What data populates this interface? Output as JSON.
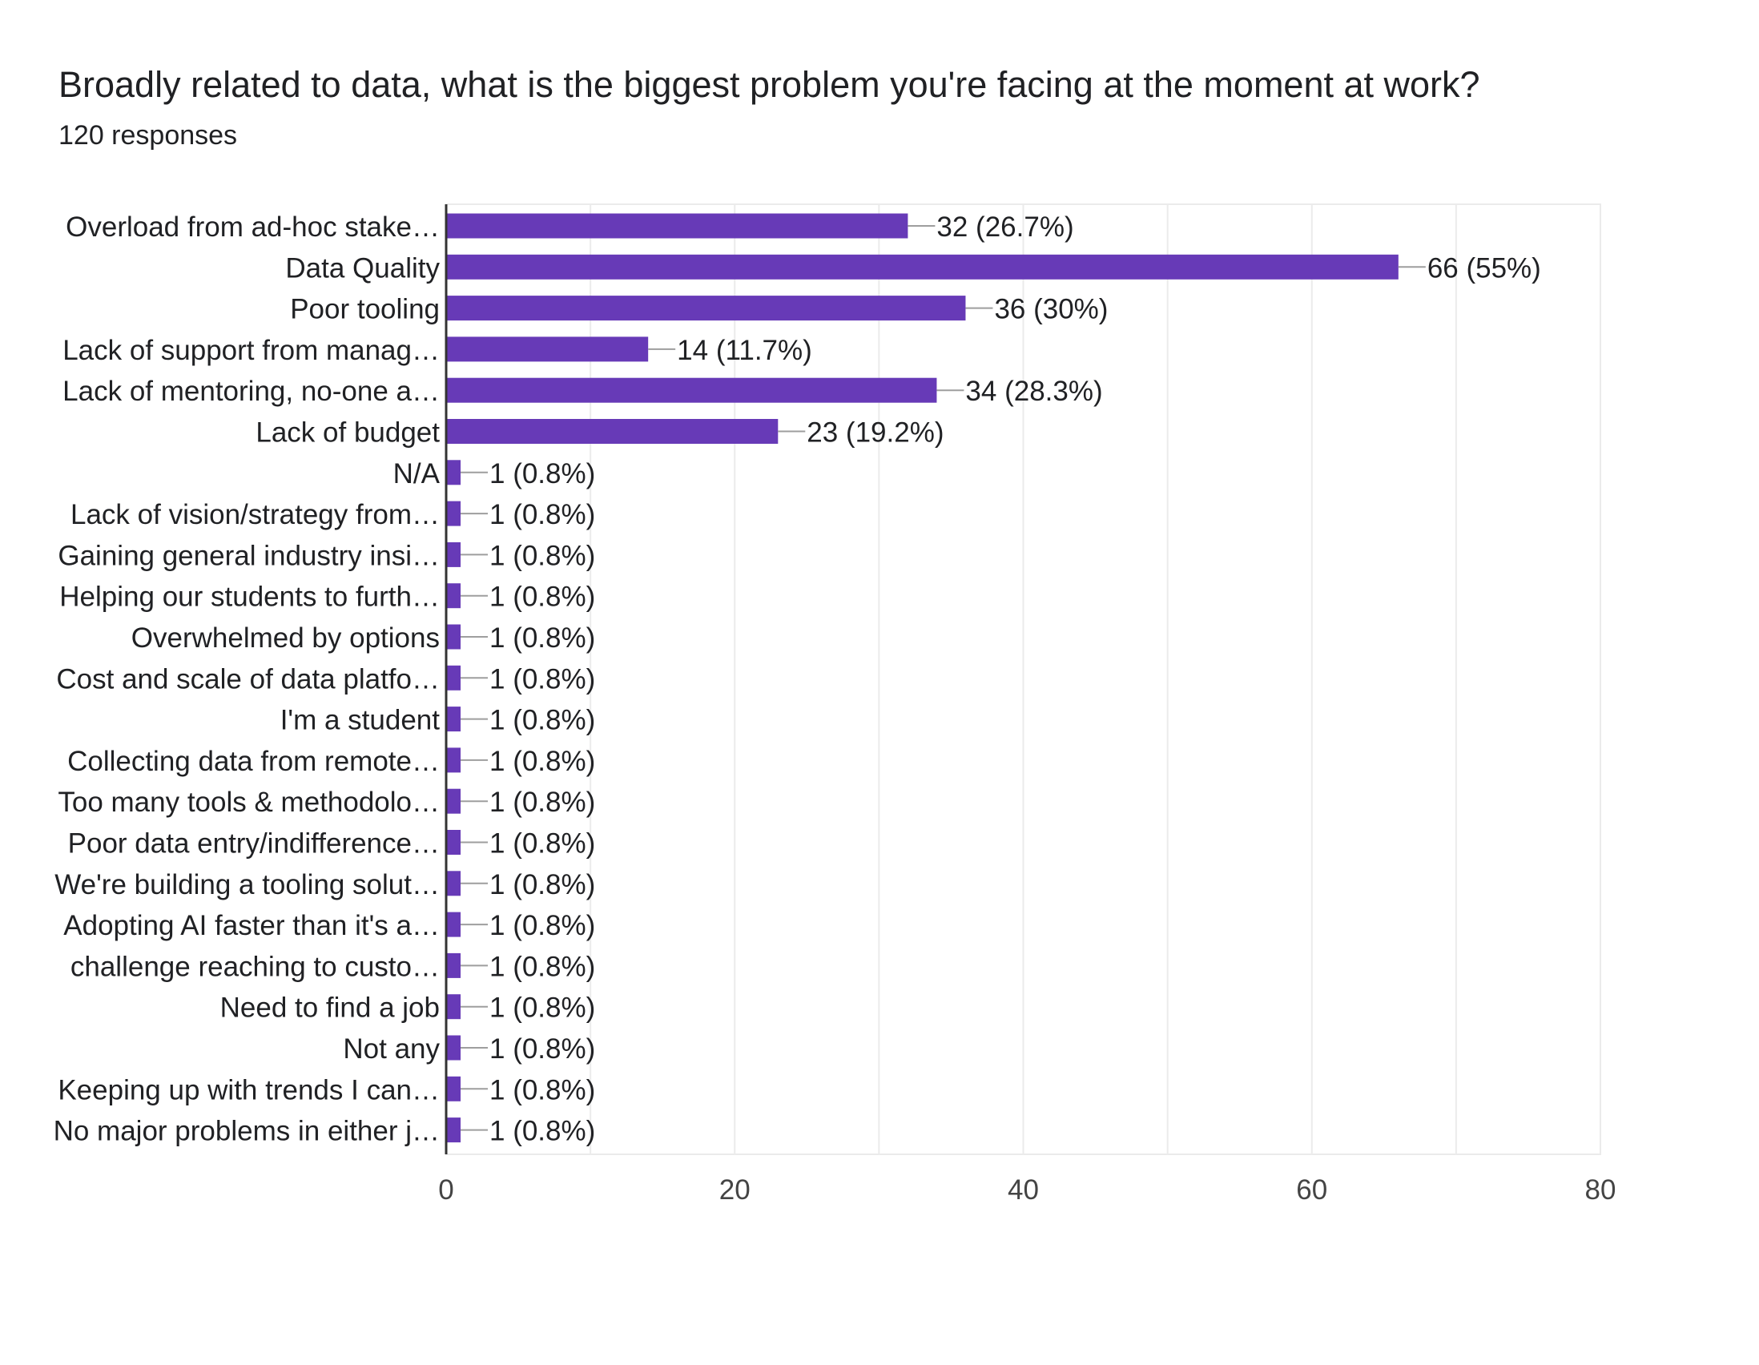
{
  "title": "Broadly related to data, what is the biggest problem you're facing at the moment at work?",
  "subtitle": "120 responses",
  "colors": {
    "bar": "#673ab7",
    "grid": "#ebebeb",
    "axis": "#333333",
    "leader": "#9e9e9e",
    "text": "#202124",
    "tick_text": "#444444"
  },
  "chart_data": {
    "type": "bar",
    "orientation": "horizontal",
    "categories": [
      "Overload from ad-hoc stake…",
      "Data Quality",
      "Poor tooling",
      "Lack of support from manag…",
      "Lack of mentoring, no-one a…",
      "Lack of budget",
      "N/A",
      "Lack of vision/strategy from…",
      "Gaining general industry insi…",
      "Helping our students to furth…",
      "Overwhelmed by options",
      "Cost and scale of data platfo…",
      "I'm a student",
      "Collecting data from remote…",
      "Too many tools & methodolo…",
      "Poor data entry/indifference…",
      "We're building a tooling solut…",
      "Adopting AI faster than it's a…",
      "challenge reaching to custo…",
      "Need to find a job",
      "Not any",
      "Keeping up with trends I can…",
      "No major problems in either j…"
    ],
    "values": [
      32,
      66,
      36,
      14,
      34,
      23,
      1,
      1,
      1,
      1,
      1,
      1,
      1,
      1,
      1,
      1,
      1,
      1,
      1,
      1,
      1,
      1,
      1
    ],
    "data_labels": [
      "32 (26.7%)",
      "66 (55%)",
      "36 (30%)",
      "14 (11.7%)",
      "34 (28.3%)",
      "23 (19.2%)",
      "1 (0.8%)",
      "1 (0.8%)",
      "1 (0.8%)",
      "1 (0.8%)",
      "1 (0.8%)",
      "1 (0.8%)",
      "1 (0.8%)",
      "1 (0.8%)",
      "1 (0.8%)",
      "1 (0.8%)",
      "1 (0.8%)",
      "1 (0.8%)",
      "1 (0.8%)",
      "1 (0.8%)",
      "1 (0.8%)",
      "1 (0.8%)",
      "1 (0.8%)"
    ],
    "xlim": [
      0,
      80
    ],
    "xticks": [
      0,
      20,
      40,
      60,
      80
    ],
    "xtick_labels": [
      "0",
      "20",
      "40",
      "60",
      "80"
    ],
    "grid": true,
    "legend": "none"
  }
}
